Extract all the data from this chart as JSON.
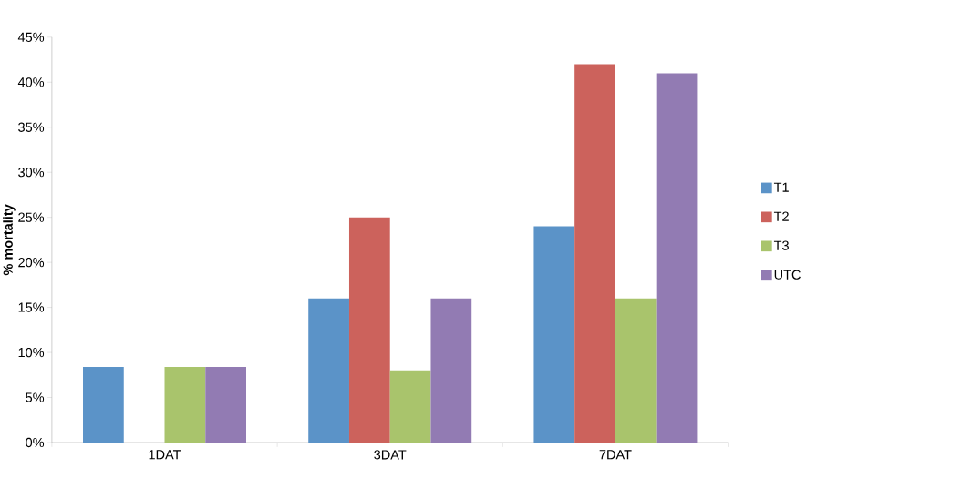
{
  "chart_data": {
    "type": "bar",
    "ylabel": "% mortality",
    "categories": [
      "1DAT",
      "3DAT",
      "7DAT"
    ],
    "series": [
      {
        "name": "T1",
        "color": "#5b93c8",
        "values": [
          8.4,
          16,
          24
        ]
      },
      {
        "name": "T2",
        "color": "#cc625c",
        "values": [
          0,
          25,
          42
        ]
      },
      {
        "name": "T3",
        "color": "#a9c46c",
        "values": [
          8.4,
          8,
          16
        ]
      },
      {
        "name": "UTC",
        "color": "#927bb3",
        "values": [
          8.4,
          16,
          41
        ]
      }
    ],
    "ylim": [
      0,
      45
    ],
    "yticks": [
      {
        "value": 0,
        "label": "0%"
      },
      {
        "value": 5,
        "label": "5%"
      },
      {
        "value": 10,
        "label": "10%"
      },
      {
        "value": 15,
        "label": "15%"
      },
      {
        "value": 20,
        "label": "20%"
      },
      {
        "value": 25,
        "label": "25%"
      },
      {
        "value": 30,
        "label": "30%"
      },
      {
        "value": 35,
        "label": "35%"
      },
      {
        "value": 40,
        "label": "40%"
      },
      {
        "value": 45,
        "label": "45%"
      }
    ],
    "legend": "right",
    "grid": false
  }
}
